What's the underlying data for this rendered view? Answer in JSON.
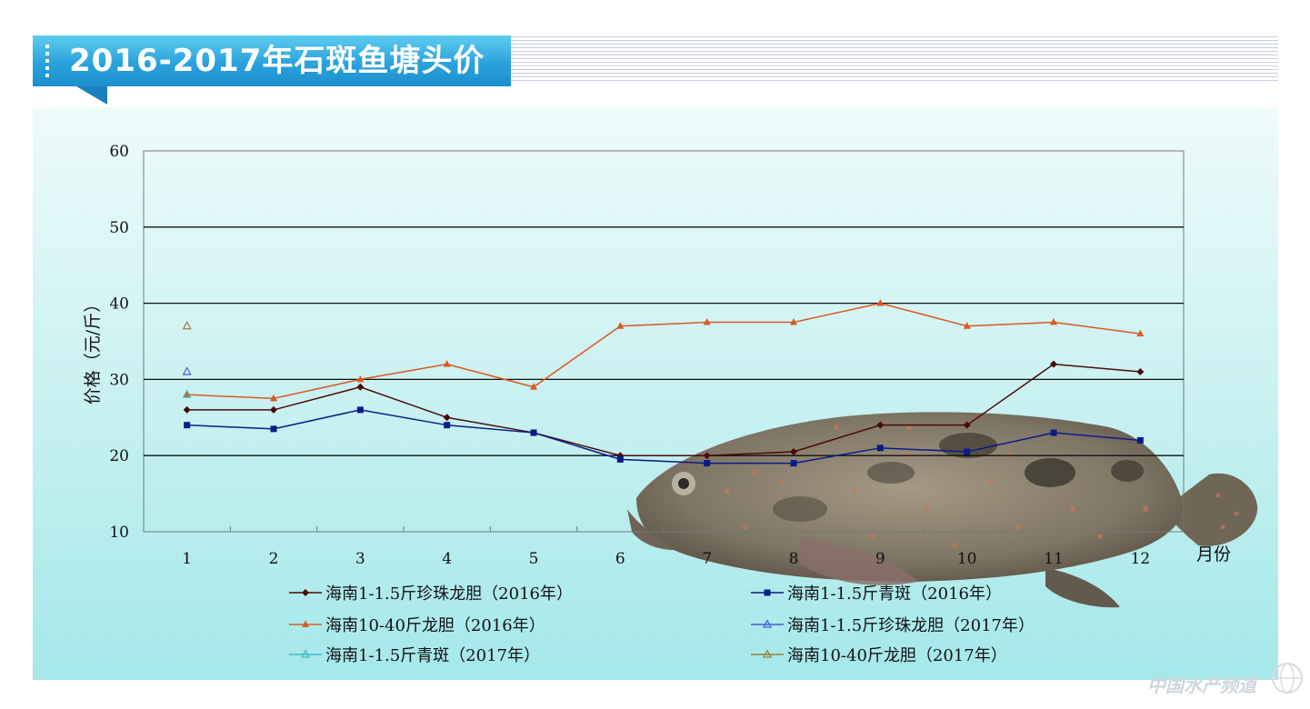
{
  "header": {
    "title": "2016-2017年石斑鱼塘头价"
  },
  "watermark": {
    "text": "中国水产频道"
  },
  "chart_data": {
    "type": "line",
    "title": "2016-2017年石斑鱼塘头价",
    "xlabel": "月份",
    "ylabel": "价格（元/斤）",
    "x": [
      1,
      2,
      3,
      4,
      5,
      6,
      7,
      8,
      9,
      10,
      11,
      12
    ],
    "xlim": [
      0.5,
      12.5
    ],
    "ylim": [
      10,
      60
    ],
    "yticks": [
      10,
      20,
      30,
      40,
      50,
      60
    ],
    "grid": "horizontal",
    "legend_position": "bottom",
    "series": [
      {
        "name": "海南1-1.5斤珍珠龙胆（2016年）",
        "color": "#4a0a0a",
        "marker": "diamond",
        "values": [
          26,
          26,
          29,
          25,
          23,
          20,
          20,
          20.5,
          24,
          24,
          32,
          31
        ]
      },
      {
        "name": "海南1-1.5斤青斑（2016年）",
        "color": "#0a1a8a",
        "marker": "square",
        "values": [
          24,
          23.5,
          26,
          24,
          23,
          19.5,
          19,
          19,
          21,
          20.5,
          23,
          22
        ]
      },
      {
        "name": "海南10-40斤龙胆（2016年）",
        "color": "#d85a20",
        "marker": "triangle",
        "values": [
          28,
          27.5,
          30,
          32,
          29,
          37,
          37.5,
          37.5,
          40,
          37,
          37.5,
          36
        ]
      },
      {
        "name": "海南1-1.5斤珍珠龙胆（2017年）",
        "color": "#4a5ad0",
        "marker": "triangle-open",
        "values": [
          31,
          null,
          null,
          null,
          null,
          null,
          null,
          null,
          null,
          null,
          null,
          null
        ]
      },
      {
        "name": "海南1-1.5斤青斑（2017年）",
        "color": "#3bbdc0",
        "marker": "triangle-open",
        "values": [
          28,
          null,
          null,
          null,
          null,
          null,
          null,
          null,
          null,
          null,
          null,
          null
        ]
      },
      {
        "name": "海南10-40斤龙胆（2017年）",
        "color": "#a07a3a",
        "marker": "triangle-open",
        "values": [
          37,
          null,
          null,
          null,
          null,
          null,
          null,
          null,
          null,
          null,
          null,
          null
        ]
      }
    ]
  }
}
